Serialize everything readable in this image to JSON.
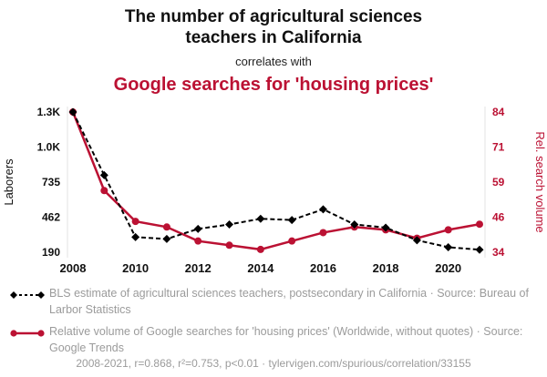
{
  "title": {
    "line1": "The number of agricultural sciences teachers in California",
    "connector": "correlates with",
    "line2": "Google searches for 'housing prices'"
  },
  "colors": {
    "series1": "#000000",
    "series2": "#bb1133",
    "gray_text": "#9b9b9b",
    "edge_line": "#e3e3e3"
  },
  "chart_data": {
    "type": "line",
    "x": [
      2008,
      2009,
      2010,
      2011,
      2012,
      2013,
      2014,
      2015,
      2016,
      2017,
      2018,
      2019,
      2020,
      2021
    ],
    "series": [
      {
        "name": "BLS estimate of agricultural sciences teachers, postsecondary in California",
        "axis": "left",
        "style": "dashed-diamond",
        "values": [
          1300,
          800,
          310,
          295,
          375,
          410,
          455,
          445,
          530,
          410,
          385,
          285,
          230,
          210
        ]
      },
      {
        "name": "Relative volume of Google searches for 'housing prices'",
        "axis": "right",
        "style": "solid-circle",
        "values": [
          84,
          56,
          45,
          43,
          38,
          36.5,
          35,
          38,
          41,
          43,
          42,
          39,
          42,
          44
        ]
      }
    ],
    "left_axis": {
      "label": "Laborers",
      "ticks": [
        "1.3K",
        "1.0K",
        "735",
        "462",
        "190"
      ],
      "range": [
        190,
        1300
      ]
    },
    "right_axis": {
      "label": "Rel. search volume",
      "ticks": [
        "84",
        "71",
        "59",
        "46",
        "34"
      ],
      "range": [
        34,
        84
      ]
    },
    "x_ticks": [
      "2008",
      "2010",
      "2012",
      "2014",
      "2016",
      "2018",
      "2020"
    ],
    "grid": false,
    "legend_position": "bottom-left"
  },
  "legend": [
    {
      "marker": "black-dashed-diamond",
      "text": "BLS estimate of agricultural sciences teachers, postsecondary in California · Source: Bureau of Larbor Statistics"
    },
    {
      "marker": "red-solid-circle",
      "text": "Relative volume of Google searches for 'housing prices' (Worldwide, without quotes) · Source: Google Trends"
    }
  ],
  "footer": "2008-2021, r=0.868, r²=0.753, p<0.01 · tylervigen.com/spurious/correlation/33155"
}
